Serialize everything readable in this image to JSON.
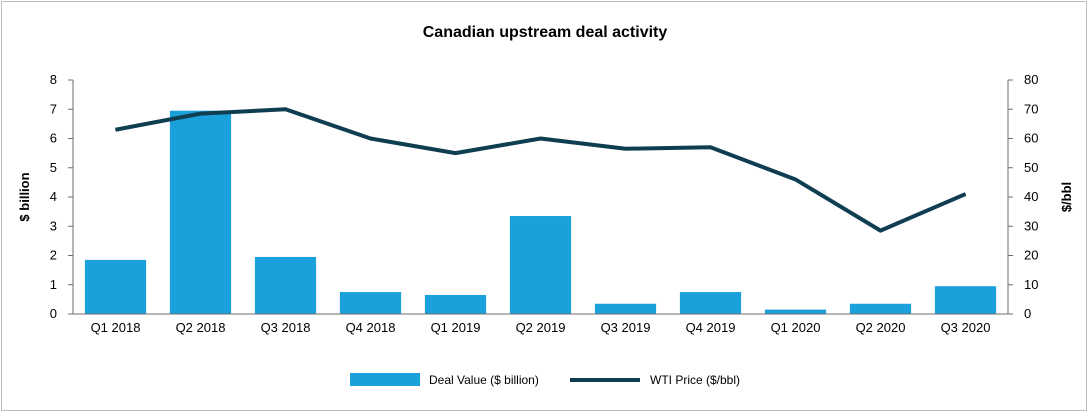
{
  "chart_data": {
    "type": "bar",
    "title": "Canadian upstream deal activity",
    "categories": [
      "Q1 2018",
      "Q2 2018",
      "Q3 2018",
      "Q4 2018",
      "Q1 2019",
      "Q2 2019",
      "Q3 2019",
      "Q4 2019",
      "Q1 2020",
      "Q2 2020",
      "Q3 2020"
    ],
    "series": [
      {
        "name": "Deal Value ($ billion)",
        "type": "bar",
        "axis": "left",
        "color": "#1aa1dc",
        "values": [
          1.85,
          6.95,
          1.95,
          0.75,
          0.65,
          3.35,
          0.35,
          0.75,
          0.15,
          0.35,
          0.95
        ]
      },
      {
        "name": "WTI Price ($/bbl)",
        "type": "line",
        "axis": "right",
        "color": "#0f3d52",
        "values": [
          63,
          68.5,
          70,
          60,
          55,
          60,
          56.5,
          57,
          46,
          28.5,
          41
        ]
      }
    ],
    "ylabel": "$ billion",
    "ylim": [
      0,
      8
    ],
    "yticks": [
      "0",
      "1",
      "2",
      "3",
      "4",
      "5",
      "6",
      "7",
      "8"
    ],
    "y2label": "$/bbl",
    "y2lim": [
      0,
      80
    ],
    "y2ticks": [
      "0",
      "10",
      "20",
      "30",
      "40",
      "50",
      "60",
      "70",
      "80"
    ],
    "grid": false,
    "legend_position": "bottom"
  }
}
